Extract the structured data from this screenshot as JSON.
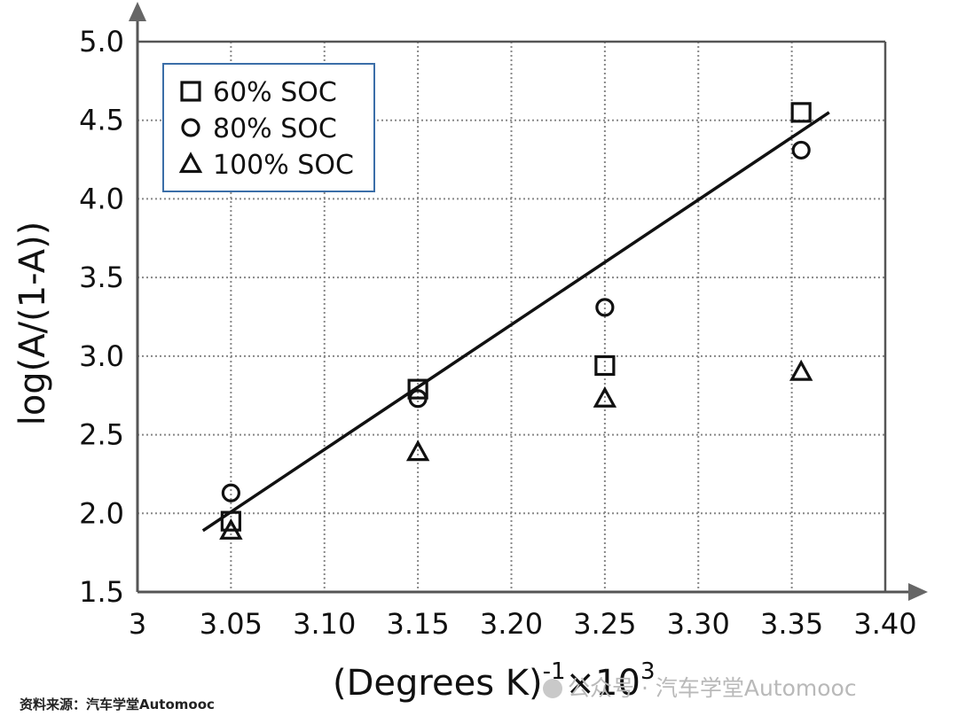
{
  "chart_data": {
    "type": "scatter",
    "xlabel": "(Degrees K)",
    "xlabel_sup": "-1",
    "xlabel_tail": "×10",
    "xlabel_sup2": "3",
    "ylabel": "log(A/(1-A))",
    "xlim": [
      3.0,
      3.4
    ],
    "ylim": [
      1.5,
      5.0
    ],
    "x_ticks": [
      "3",
      "3.05",
      "3.10",
      "3.15",
      "3.20",
      "3.25",
      "3.30",
      "3.35",
      "3.40"
    ],
    "x_tick_values": [
      3.0,
      3.05,
      3.1,
      3.15,
      3.2,
      3.25,
      3.3,
      3.35,
      3.4
    ],
    "y_ticks": [
      "1.5",
      "2.0",
      "2.5",
      "3.0",
      "3.5",
      "4.0",
      "4.5",
      "5.0"
    ],
    "y_tick_values": [
      1.5,
      2.0,
      2.5,
      3.0,
      3.5,
      4.0,
      4.5,
      5.0
    ],
    "grid": true,
    "legend_position": "top-left",
    "series": [
      {
        "name": "60% SOC",
        "marker": "square",
        "points": [
          [
            3.05,
            1.95
          ],
          [
            3.15,
            2.79
          ],
          [
            3.25,
            2.94
          ],
          [
            3.355,
            4.55
          ]
        ]
      },
      {
        "name": "80% SOC",
        "marker": "circle",
        "points": [
          [
            3.05,
            2.13
          ],
          [
            3.15,
            2.73
          ],
          [
            3.25,
            3.31
          ],
          [
            3.355,
            4.31
          ]
        ]
      },
      {
        "name": "100% SOC",
        "marker": "triangle",
        "points": [
          [
            3.05,
            1.89
          ],
          [
            3.15,
            2.39
          ],
          [
            3.25,
            2.73
          ],
          [
            3.355,
            2.9
          ]
        ]
      }
    ],
    "fit_line": {
      "x": [
        3.035,
        3.37
      ],
      "y": [
        1.89,
        4.55
      ]
    }
  },
  "footer": {
    "source": "资料来源：汽车学堂Automooc",
    "watermark": "公众号 · 汽车学堂Automooc"
  }
}
